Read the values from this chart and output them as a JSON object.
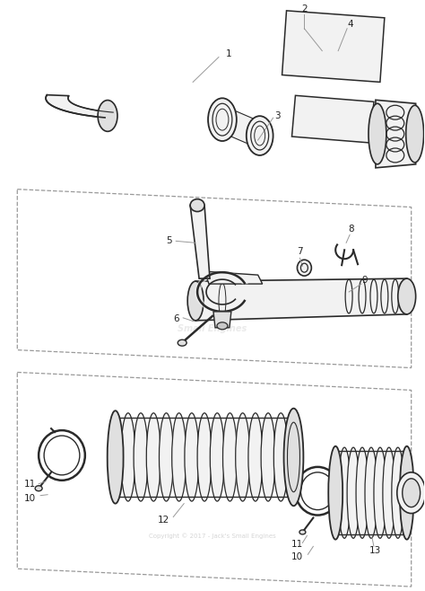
{
  "background_color": "#ffffff",
  "line_color": "#2a2a2a",
  "dash_color": "#999999",
  "light_fill": "#f2f2f2",
  "mid_fill": "#e0e0e0",
  "dark_fill": "#c8c8c8",
  "watermark": "Copyright © 2017 - Jack's Small Engines",
  "watermark_color": "#cccccc"
}
